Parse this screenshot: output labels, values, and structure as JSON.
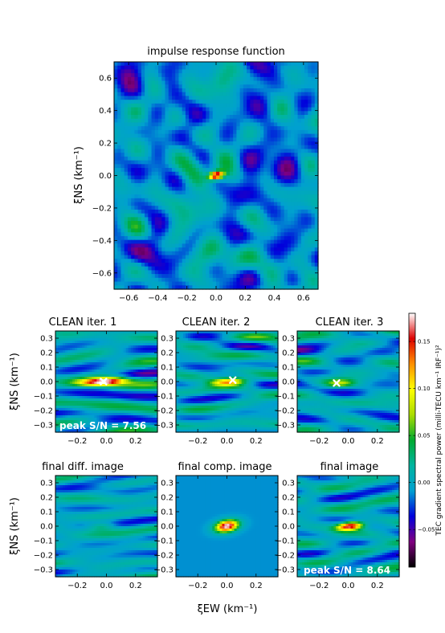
{
  "chart_data": [
    {
      "type": "heatmap",
      "title": "impulse response function",
      "xlim": [
        -0.7,
        0.7
      ],
      "ylim": [
        -0.7,
        0.7
      ],
      "xticks": [
        "−0.6",
        "−0.4",
        "−0.2",
        "0.0",
        "0.2",
        "0.4",
        "0.6"
      ],
      "yticks": [
        "−0.6",
        "−0.4",
        "−0.2",
        "0.0",
        "0.2",
        "0.4",
        "0.6"
      ],
      "ylabel": "ξNS (km⁻¹)"
    },
    {
      "type": "heatmap",
      "title": "CLEAN iter. 1",
      "xlim": [
        -0.35,
        0.35
      ],
      "ylim": [
        -0.35,
        0.35
      ],
      "xticks": [
        "−0.2",
        "0.0",
        "0.2"
      ],
      "yticks": [
        "−0.3",
        "−0.2",
        "−0.1",
        "0.0",
        "0.1",
        "0.2",
        "0.3"
      ],
      "ylabel": "ξNS (km⁻¹)",
      "marker": {
        "symbol": "x",
        "x": -0.02,
        "y": 0.0
      },
      "annotation": "peak S/N = 7.56"
    },
    {
      "type": "heatmap",
      "title": "CLEAN iter. 2",
      "xlim": [
        -0.35,
        0.35
      ],
      "ylim": [
        -0.35,
        0.35
      ],
      "xticks": [
        "−0.2",
        "0.0",
        "0.2"
      ],
      "yticks": [
        "0.3",
        "0.2",
        "0.1",
        "0.0",
        "−0.1",
        "−0.2",
        "−0.3"
      ],
      "marker": {
        "symbol": "x",
        "x": 0.04,
        "y": 0.01
      }
    },
    {
      "type": "heatmap",
      "title": "CLEAN iter. 3",
      "xlim": [
        -0.35,
        0.35
      ],
      "ylim": [
        -0.35,
        0.35
      ],
      "xticks": [
        "−0.2",
        "0.0",
        "0.2"
      ],
      "yticks": [
        "0.3",
        "0.2",
        "0.1",
        "0.0",
        "−0.1",
        "−0.2",
        "−0.3"
      ],
      "marker": {
        "symbol": "x",
        "x": -0.08,
        "y": -0.01
      }
    },
    {
      "type": "heatmap",
      "title": "final diff. image",
      "xlim": [
        -0.35,
        0.35
      ],
      "ylim": [
        -0.35,
        0.35
      ],
      "xticks": [
        "−0.2",
        "0.0",
        "0.2"
      ],
      "yticks": [
        "0.3",
        "0.2",
        "0.1",
        "0.0",
        "−0.1",
        "−0.2",
        "−0.3"
      ],
      "ylabel": "ξNS (km⁻¹)"
    },
    {
      "type": "heatmap",
      "title": "final comp. image",
      "xlim": [
        -0.35,
        0.35
      ],
      "ylim": [
        -0.35,
        0.35
      ],
      "xticks": [
        "−0.2",
        "0.0",
        "0.2"
      ],
      "yticks": [
        "0.3",
        "0.2",
        "0.1",
        "0.0",
        "−0.1",
        "−0.2",
        "−0.3"
      ],
      "xlabel": "ξEW (km⁻¹)"
    },
    {
      "type": "heatmap",
      "title": "final image",
      "xlim": [
        -0.35,
        0.35
      ],
      "ylim": [
        -0.35,
        0.35
      ],
      "xticks": [
        "−0.2",
        "0.0",
        "0.2"
      ],
      "yticks": [
        "0.3",
        "0.2",
        "0.1",
        "0.0",
        "−0.1",
        "−0.2",
        "−0.3"
      ],
      "annotation": "peak S/N = 8.64"
    }
  ],
  "colorbar": {
    "label": "TEC gradient spectral power (milli-TECU km⁻¹ IRF⁻¹)²",
    "ticks": [
      "0.15",
      "0.10",
      "0.05",
      "0.00",
      "−0.05"
    ],
    "range": [
      -0.09,
      0.18
    ],
    "colors": [
      "#000000",
      "#800080",
      "#0000dc",
      "#00a0d0",
      "#00b4a0",
      "#00aa30",
      "#aadc00",
      "#ffff00",
      "#ff9000",
      "#dd0000",
      "#ffffff"
    ]
  }
}
